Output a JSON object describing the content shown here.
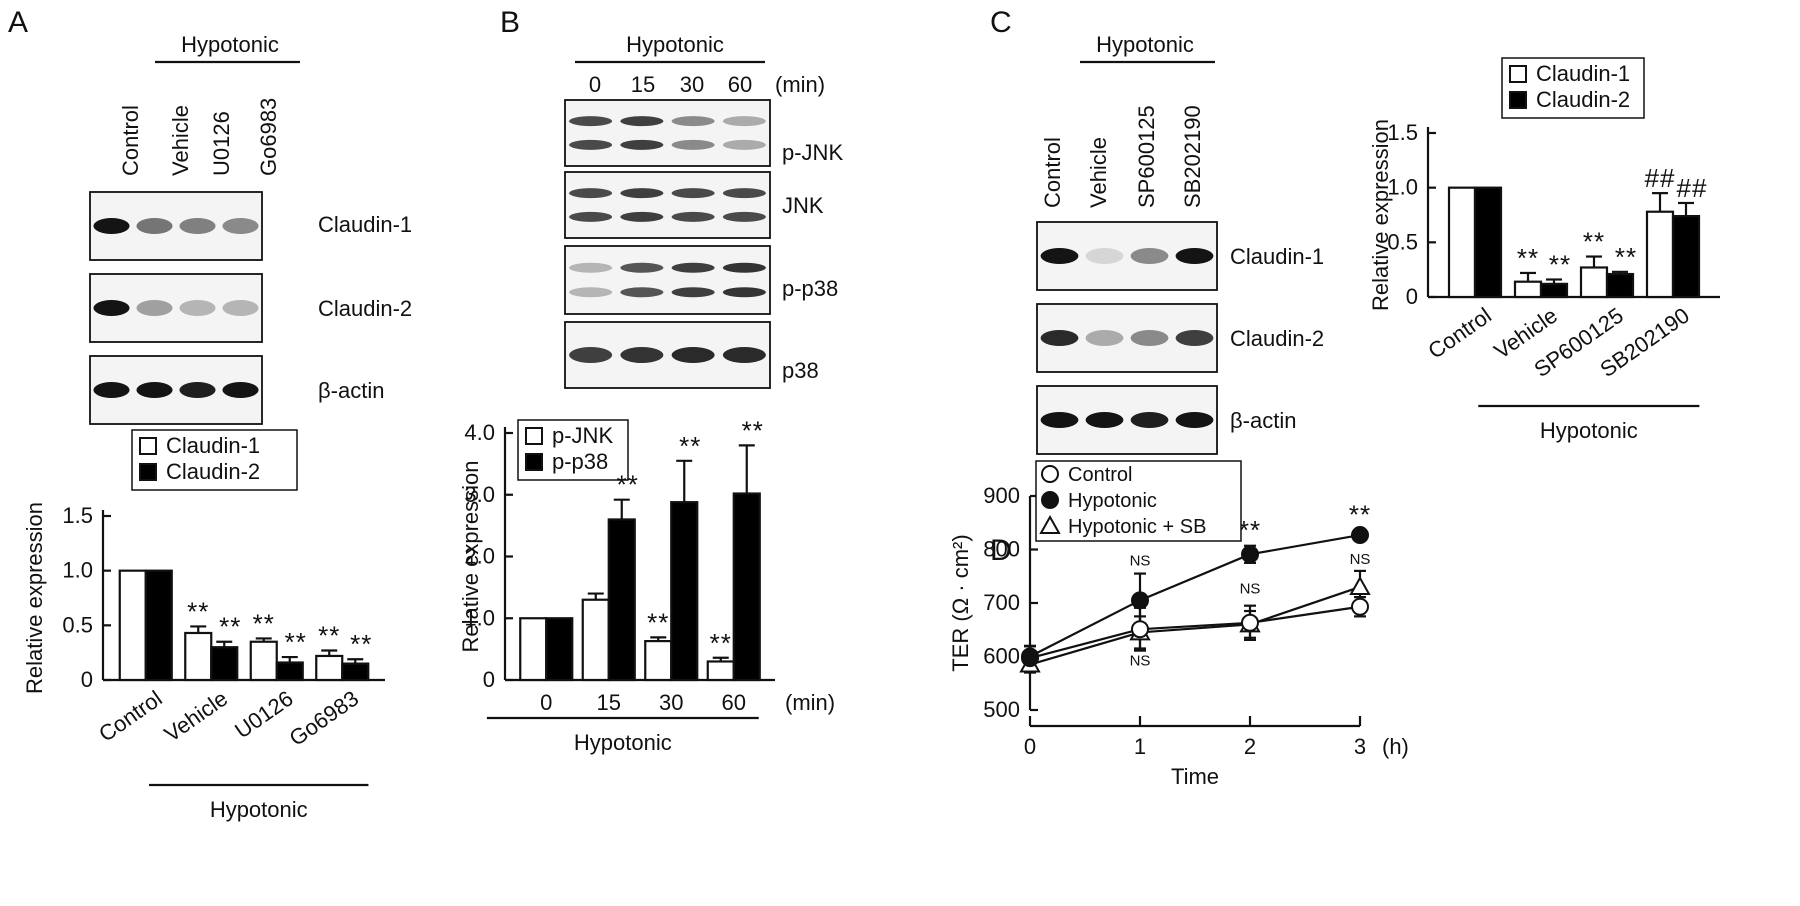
{
  "panels": {
    "A": "A",
    "B": "B",
    "C": "C",
    "D": "D"
  },
  "treatment_label": "Hypotonic",
  "panelA": {
    "lanes": [
      "Control",
      "Vehicle",
      "U0126",
      "Go6983"
    ],
    "blot_labels": [
      "Claudin-1",
      "Claudin-2",
      "β-actin"
    ],
    "blot_intensities": [
      [
        1.0,
        0.55,
        0.5,
        0.45
      ],
      [
        1.0,
        0.35,
        0.25,
        0.25
      ],
      [
        1.0,
        1.0,
        0.95,
        1.0
      ]
    ]
  },
  "panelB": {
    "lanes": [
      "0",
      "15",
      "30",
      "60"
    ],
    "lane_unit": "(min)",
    "blot_labels": [
      "p-JNK",
      "JNK",
      "p-p38",
      "p38"
    ],
    "blot_intensities": [
      [
        0.75,
        0.8,
        0.45,
        0.3
      ],
      [
        0.75,
        0.8,
        0.75,
        0.75
      ],
      [
        0.25,
        0.7,
        0.8,
        0.85
      ],
      [
        0.8,
        0.85,
        0.9,
        0.9
      ]
    ]
  },
  "panelC": {
    "lanes": [
      "Control",
      "Vehicle",
      "SP600125",
      "SB202190"
    ],
    "blot_labels": [
      "Claudin-1",
      "Claudin-2",
      "β-actin"
    ],
    "blot_intensities": [
      [
        1.0,
        0.1,
        0.45,
        1.0
      ],
      [
        0.9,
        0.3,
        0.45,
        0.8
      ],
      [
        1.0,
        1.0,
        0.95,
        1.0
      ]
    ]
  },
  "chart_data": [
    {
      "id": "A",
      "type": "bar",
      "categories": [
        "Control",
        "Vehicle",
        "U0126",
        "Go6983"
      ],
      "series": [
        {
          "name": "Claudin-1",
          "color": "#ffffff",
          "values": [
            1.0,
            0.43,
            0.35,
            0.22
          ],
          "errors": [
            0,
            0.06,
            0.03,
            0.05
          ],
          "marks": [
            "",
            "**",
            "**",
            "**"
          ]
        },
        {
          "name": "Claudin-2",
          "color": "#000000",
          "values": [
            1.0,
            0.3,
            0.16,
            0.15
          ],
          "errors": [
            0,
            0.05,
            0.05,
            0.04
          ],
          "marks": [
            "",
            "**",
            "**",
            "**"
          ]
        }
      ],
      "ylabel": "Relative expression",
      "ylim": [
        0,
        1.5
      ],
      "yticks": [
        "0",
        "0.5",
        "1.0",
        "1.5"
      ],
      "legend": "top-right",
      "group_label": "Hypotonic"
    },
    {
      "id": "B",
      "type": "bar",
      "categories": [
        "0",
        "15",
        "30",
        "60"
      ],
      "x_unit": "(min)",
      "series": [
        {
          "name": "p-JNK",
          "color": "#ffffff",
          "values": [
            1.0,
            1.3,
            0.63,
            0.3
          ],
          "errors": [
            0,
            0.1,
            0.06,
            0.06
          ],
          "marks": [
            "",
            "",
            "**",
            "**"
          ]
        },
        {
          "name": "p-p38",
          "color": "#000000",
          "values": [
            1.0,
            2.6,
            2.88,
            3.02
          ],
          "errors": [
            0,
            0.32,
            0.67,
            0.78
          ],
          "marks": [
            "",
            "**",
            "**",
            "**"
          ]
        }
      ],
      "ylabel": "Relative expression",
      "ylim": [
        0,
        4.0
      ],
      "yticks": [
        "0",
        "1.0",
        "2.0",
        "3.0",
        "4.0"
      ],
      "legend": "top-left",
      "group_label": "Hypotonic"
    },
    {
      "id": "C",
      "type": "bar",
      "categories": [
        "Control",
        "Vehicle",
        "SP600125",
        "SB202190"
      ],
      "series": [
        {
          "name": "Claudin-1",
          "color": "#ffffff",
          "values": [
            1.0,
            0.14,
            0.27,
            0.78
          ],
          "errors": [
            0,
            0.08,
            0.1,
            0.17
          ],
          "marks": [
            "",
            "**",
            "**",
            "##"
          ]
        },
        {
          "name": "Claudin-2",
          "color": "#000000",
          "values": [
            1.0,
            0.12,
            0.21,
            0.74
          ],
          "errors": [
            0,
            0.04,
            0.02,
            0.12
          ],
          "marks": [
            "",
            "**",
            "**",
            "##"
          ]
        }
      ],
      "ylabel": "Relative expression",
      "ylim": [
        0,
        1.5
      ],
      "yticks": [
        "0",
        "0.5",
        "1.0",
        "1.5"
      ],
      "legend": "top-right",
      "group_label": "Hypotonic"
    },
    {
      "id": "D",
      "type": "line",
      "x": [
        0,
        1,
        2,
        3
      ],
      "xticks": [
        "0",
        "1",
        "2",
        "3"
      ],
      "x_unit": "(h)",
      "xlabel": "Time",
      "ylabel": "TER  (Ω · cm²)",
      "ylim": [
        500,
        900
      ],
      "yticks": [
        "500",
        "600",
        "700",
        "800",
        "900"
      ],
      "legend": "top-left",
      "series": [
        {
          "name": "Control",
          "marker": "circle-open",
          "values": [
            597,
            651,
            663,
            693
          ],
          "errors": [
            22,
            40,
            32,
            18
          ]
        },
        {
          "name": "Hypotonic",
          "marker": "circle-filled",
          "values": [
            600,
            705,
            791,
            827
          ],
          "errors": [
            20,
            50,
            16,
            10
          ]
        },
        {
          "name": "Hypotonic + SB",
          "marker": "triangle-open",
          "values": [
            585,
            645,
            660,
            730
          ],
          "errors": [
            15,
            30,
            25,
            30
          ]
        }
      ],
      "annotations": [
        {
          "x": 1,
          "text": "NS",
          "pos": "above"
        },
        {
          "x": 1,
          "text": "NS",
          "pos": "below"
        },
        {
          "x": 2,
          "text": "**",
          "pos": "above"
        },
        {
          "x": 2,
          "text": "NS",
          "pos": "mid"
        },
        {
          "x": 3,
          "text": "**",
          "pos": "above"
        },
        {
          "x": 3,
          "text": "NS",
          "pos": "mid"
        }
      ]
    }
  ]
}
